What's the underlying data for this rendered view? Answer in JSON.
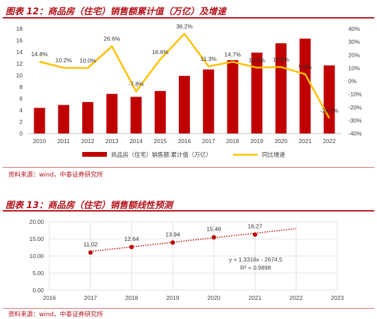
{
  "figure1": {
    "title": "图表 12：商品房（住宅）销售额累计值（万亿）及增速",
    "source": "资料来源：wind，中泰证券研究所"
  },
  "figure2": {
    "title": "图表 13：商品房（住宅）销售额线性预测",
    "source": "资料来源：wind，中泰证券研究所"
  },
  "colors": {
    "accent": "#b3121a",
    "bar": "#c00000",
    "line": "#ffc000",
    "trend": "#c00000"
  },
  "chart_data": [
    {
      "type": "bar",
      "categories": [
        "2010",
        "2011",
        "2012",
        "2013",
        "2014",
        "2015",
        "2016",
        "2017",
        "2018",
        "2019",
        "2020",
        "2021",
        "2022"
      ],
      "series": [
        {
          "name": "商品房（住宅）销售额:累计值（万亿）",
          "type": "bar",
          "axis": "left",
          "values": [
            4.4,
            4.9,
            5.4,
            6.8,
            6.3,
            7.3,
            9.9,
            11.0,
            12.6,
            13.9,
            15.5,
            16.3,
            11.7
          ]
        },
        {
          "name": "同比增速",
          "type": "line",
          "axis": "right",
          "values": [
            14.8,
            10.2,
            10.0,
            26.6,
            -7.8,
            16.6,
            36.2,
            11.3,
            14.7,
            10.3,
            10.8,
            5.3,
            -28.3
          ],
          "labels": [
            "14.8%",
            "10.2%",
            "10.0%",
            "26.6%",
            "-7.8%",
            "16.6%",
            "36.2%",
            "11.3%",
            "14.7%",
            "10.3%",
            "10.8%",
            "5.3%",
            "-28.3%"
          ]
        }
      ],
      "ylim_left": [
        0,
        18
      ],
      "yticks_left": [
        "0",
        "2",
        "4",
        "6",
        "8",
        "10",
        "12",
        "14",
        "16",
        "18"
      ],
      "ylim_right": [
        -40,
        40
      ],
      "yticks_right": [
        "-40%",
        "-30%",
        "-20%",
        "-10%",
        "0%",
        "10%",
        "20%",
        "30%",
        "40%"
      ],
      "legend_position": "bottom"
    },
    {
      "type": "scatter",
      "x": [
        2017,
        2018,
        2019,
        2020,
        2021
      ],
      "y": [
        11.02,
        12.64,
        13.94,
        15.46,
        16.27
      ],
      "labels": [
        "11.02",
        "12.64",
        "13.94",
        "15.46",
        "16.27"
      ],
      "trendline": {
        "slope": 1.3316,
        "intercept": -2674.5,
        "x_range": [
          2017,
          2022
        ],
        "equation": "y = 1.3316x - 2674.5",
        "r2": "R² = 0.9898"
      },
      "xlim": [
        2016,
        2023
      ],
      "xticks": [
        "2016",
        "2017",
        "2018",
        "2019",
        "2020",
        "2021",
        "2022",
        "2023"
      ],
      "ylim": [
        0,
        20
      ],
      "yticks": [
        "0.00",
        "5.00",
        "10.00",
        "15.00",
        "20.00"
      ],
      "grid": true
    }
  ]
}
